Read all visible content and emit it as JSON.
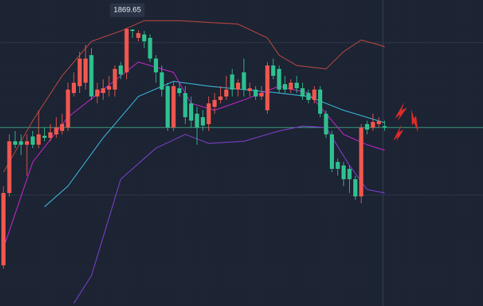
{
  "chart_data": {
    "type": "candlestick",
    "ylim": [
      1668,
      1890
    ],
    "up_color": "#f0574e",
    "down_color": "#2fbf8f",
    "open": [
      1697.5,
      1750,
      1787.5,
      1787.5,
      1785,
      1791,
      1785,
      1791.5,
      1790,
      1792.5,
      1795,
      1797.5,
      1822.5,
      1827.5,
      1830,
      1850,
      1820,
      1822.5,
      1825,
      1825,
      1842.5,
      1837.5,
      1868.5,
      1862.5,
      1865,
      1862.5,
      1847.5,
      1837.5,
      1827.5,
      1797.5,
      1826,
      1822.5,
      1815,
      1807.5,
      1805,
      1800,
      1812.5,
      1817.5,
      1820,
      1836,
      1825,
      1837.5,
      1824,
      1825,
      1820,
      1810,
      1842.5,
      1840,
      1829,
      1825,
      1830,
      1826,
      1822.5,
      1817.5,
      1825,
      1807.5,
      1792.5,
      1772.5,
      1770,
      1767.5,
      1760,
      1747.5,
      1800,
      1797.5,
      1800,
      1798.5
    ],
    "high": [
      1755,
      1792.5,
      1795,
      1792.5,
      1792.5,
      1795,
      1810,
      1797.5,
      1800,
      1805,
      1807.5,
      1830,
      1837.5,
      1852.5,
      1857.5,
      1855,
      1830,
      1832.5,
      1835,
      1842.5,
      1845,
      1869.65,
      1869,
      1868,
      1867.5,
      1865,
      1850,
      1842.5,
      1830,
      1831,
      1830,
      1827.5,
      1820,
      1812.5,
      1810,
      1820,
      1822.5,
      1827.5,
      1835,
      1840,
      1832.5,
      1847.5,
      1830,
      1827.5,
      1827.5,
      1845,
      1847.5,
      1842.5,
      1835,
      1832.5,
      1835,
      1830,
      1825,
      1827.5,
      1827.5,
      1810,
      1795,
      1775,
      1772.5,
      1770,
      1762.5,
      1800,
      1802.5,
      1807.5,
      1805,
      1802.5
    ],
    "low": [
      1695,
      1747.5,
      1782.5,
      1777.5,
      1762.5,
      1782.5,
      1782.5,
      1787.5,
      1787.5,
      1790,
      1792.5,
      1795,
      1820,
      1822.5,
      1825,
      1817.5,
      1815,
      1817.5,
      1820,
      1820,
      1832.5,
      1832.5,
      1862.5,
      1860,
      1855,
      1845,
      1830,
      1820,
      1795,
      1795,
      1820,
      1800,
      1797.5,
      1785,
      1795,
      1795,
      1807.5,
      1815,
      1817.5,
      1820,
      1820,
      1820,
      1820,
      1817.5,
      1817.5,
      1807.5,
      1832.5,
      1822.5,
      1822.5,
      1822.5,
      1822.5,
      1817.5,
      1815,
      1815,
      1805,
      1790,
      1765,
      1762.5,
      1755,
      1750,
      1745,
      1742.5,
      1792.5,
      1795,
      1797.5,
      1795
    ],
    "close": [
      1750,
      1787.5,
      1785,
      1785,
      1787.5,
      1785,
      1792.5,
      1790,
      1794,
      1797.5,
      1800,
      1825,
      1830,
      1847.5,
      1847.5,
      1820,
      1825,
      1826,
      1827.5,
      1840,
      1836,
      1869,
      1867.5,
      1866,
      1860,
      1847.5,
      1837.5,
      1825,
      1797.5,
      1827.5,
      1822.5,
      1805,
      1802.5,
      1797.5,
      1799,
      1815,
      1817.5,
      1820,
      1825,
      1825,
      1830,
      1825,
      1826,
      1820,
      1822.5,
      1842.5,
      1835,
      1825,
      1825,
      1830,
      1826,
      1820,
      1817.5,
      1825,
      1807.5,
      1792.5,
      1767.5,
      1767.5,
      1760,
      1760,
      1747.5,
      1797.5,
      1796,
      1801.5,
      1802,
      1797.5
    ],
    "series": [
      {
        "color": "#b5463f",
        "x": [
          0,
          5,
          10,
          15,
          20,
          24,
          30,
          40,
          45,
          47,
          50,
          55,
          58,
          61,
          64,
          65
        ],
        "values": [
          1765,
          1802.5,
          1835,
          1860,
          1867.5,
          1875,
          1875,
          1872.5,
          1862.5,
          1850,
          1842.5,
          1840,
          1852.5,
          1861,
          1857.5,
          1856
        ]
      },
      {
        "color": "#3bb6d6",
        "x": [
          7,
          11,
          17,
          23,
          29,
          35,
          41,
          47,
          52,
          58,
          65
        ],
        "values": [
          1740,
          1755,
          1790,
          1820,
          1831,
          1827.5,
          1825,
          1822.5,
          1820,
          1810,
          1801
        ]
      },
      {
        "color": "#7b3fc9",
        "x": [
          12,
          15,
          20,
          26,
          31,
          35,
          41,
          47,
          51,
          55,
          59,
          62,
          65
        ],
        "values": [
          1670,
          1690,
          1760,
          1782.5,
          1792.5,
          1786,
          1787.5,
          1795,
          1798.5,
          1797.5,
          1770,
          1752.5,
          1750
        ]
      },
      {
        "color": "#c026c8",
        "x": [
          0,
          5,
          11,
          17,
          23,
          29,
          32,
          36,
          41,
          47,
          52,
          58,
          62,
          65
        ],
        "values": [
          1710,
          1772.5,
          1805,
          1825,
          1845,
          1837.5,
          1815,
          1810,
          1817.5,
          1827.5,
          1822.5,
          1792.5,
          1785,
          1781
        ]
      }
    ]
  }
}
